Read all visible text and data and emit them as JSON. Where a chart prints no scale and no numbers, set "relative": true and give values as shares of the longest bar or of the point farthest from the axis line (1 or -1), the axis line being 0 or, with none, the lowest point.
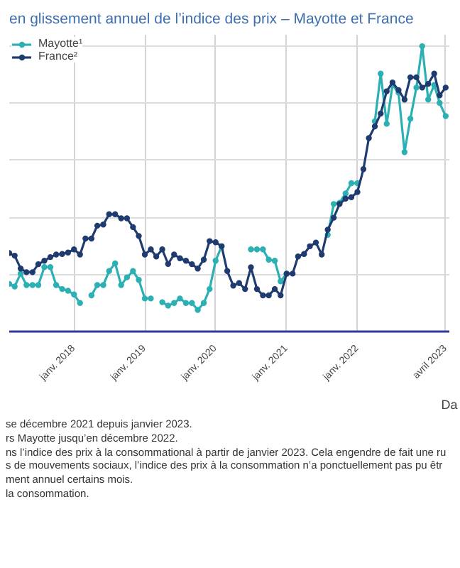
{
  "chart_data": {
    "type": "line",
    "title": "en glissement annuel de l’indice des prix – Mayotte et France",
    "xlabel": "Da",
    "relative": true,
    "grid": true,
    "legend": "top left",
    "marker": "circle",
    "line_style": "solid",
    "x": [
      "2017-02",
      "2017-03",
      "2017-04",
      "2017-05",
      "2017-06",
      "2017-07",
      "2017-08",
      "2017-09",
      "2017-10",
      "2017-11",
      "2017-12",
      "2018-01",
      "2018-02",
      "2018-03",
      "2018-04",
      "2018-05",
      "2018-06",
      "2018-07",
      "2018-08",
      "2018-09",
      "2018-10",
      "2018-11",
      "2018-12",
      "2019-01",
      "2019-02",
      "2019-03",
      "2019-04",
      "2019-05",
      "2019-06",
      "2019-07",
      "2019-08",
      "2019-09",
      "2019-10",
      "2019-11",
      "2019-12",
      "2020-01",
      "2020-02",
      "2020-03",
      "2020-04",
      "2020-05",
      "2020-06",
      "2020-07",
      "2020-08",
      "2020-09",
      "2020-10",
      "2020-11",
      "2020-12",
      "2021-01",
      "2021-02",
      "2021-03",
      "2021-04",
      "2021-05",
      "2021-06",
      "2021-07",
      "2021-08",
      "2021-09",
      "2021-10",
      "2021-11",
      "2021-12",
      "2022-01",
      "2022-02",
      "2022-03",
      "2022-04",
      "2022-05",
      "2022-06",
      "2022-07",
      "2022-08",
      "2022-09",
      "2022-10",
      "2022-11",
      "2022-12",
      "2023-01",
      "2023-02",
      "2023-03",
      "2023-04"
    ],
    "xlim": [
      "2017-02",
      "2023-04-20"
    ],
    "xticks": [
      {
        "value": "2018-01",
        "label": "janv. 2018"
      },
      {
        "value": "2019-01",
        "label": "janv. 2019"
      },
      {
        "value": "2020-01",
        "label": "janv. 2020"
      },
      {
        "value": "2021-01",
        "label": "janv. 2021"
      },
      {
        "value": "2022-01",
        "label": "janv. 2022"
      },
      {
        "value": "2023-04",
        "label": "avril 2023"
      }
    ],
    "series": [
      {
        "name": "Mayotte¹",
        "color": "#2bb0b4",
        "values": [
          0.167,
          0.158,
          0.203,
          0.163,
          0.163,
          0.163,
          0.226,
          0.226,
          0.163,
          0.149,
          0.143,
          0.13,
          0.1,
          null,
          0.127,
          0.163,
          0.163,
          0.212,
          0.239,
          0.163,
          0.19,
          0.212,
          0.181,
          0.116,
          0.116,
          null,
          0.103,
          0.091,
          0.1,
          0.116,
          0.1,
          0.1,
          0.076,
          0.1,
          0.149,
          0.248,
          0.299,
          null,
          null,
          null,
          null,
          0.288,
          0.288,
          0.288,
          0.252,
          0.248,
          0.176,
          0.203,
          null,
          null,
          null,
          null,
          null,
          null,
          0.339,
          0.447,
          0.451,
          0.484,
          0.52,
          0.52,
          null,
          null,
          0.737,
          0.904,
          0.728,
          0.864,
          0.837,
          0.629,
          0.746,
          0.855,
          1.0,
          0.813,
          0.864,
          0.801,
          0.755
        ]
      },
      {
        "name": "France²",
        "color": "#1f3b6f",
        "values": [
          0.275,
          0.266,
          0.221,
          0.208,
          0.208,
          0.236,
          0.248,
          0.261,
          0.27,
          0.272,
          0.277,
          0.288,
          0.27,
          0.326,
          0.326,
          0.371,
          0.375,
          0.411,
          0.411,
          0.397,
          0.397,
          0.366,
          0.335,
          0.27,
          0.288,
          0.263,
          0.288,
          0.237,
          0.27,
          0.257,
          0.248,
          0.236,
          0.221,
          0.252,
          0.317,
          0.313,
          0.299,
          0.212,
          0.161,
          0.17,
          0.149,
          0.225,
          0.149,
          0.127,
          0.127,
          0.149,
          0.127,
          0.203,
          0.203,
          0.263,
          0.272,
          0.299,
          0.312,
          0.27,
          0.357,
          0.399,
          0.447,
          0.466,
          0.471,
          0.489,
          0.569,
          0.678,
          0.719,
          0.764,
          0.842,
          0.873,
          0.846,
          0.813,
          0.891,
          0.891,
          0.855,
          0.868,
          0.904,
          0.828,
          0.855
        ]
      }
    ],
    "annotations": [
      "se décembre 2021 depuis janvier 2023.",
      "rs Mayotte jusqu’en décembre 2022.",
      "ns l’indice des prix à la consommational à partir de janvier 2023. Cela engendre de fait une ru",
      "s de mouvements sociaux, l’indice des prix à la consommation n’a ponctuellement pas pu êtr",
      "ment annuel certains mois.",
      "la consommation."
    ]
  }
}
